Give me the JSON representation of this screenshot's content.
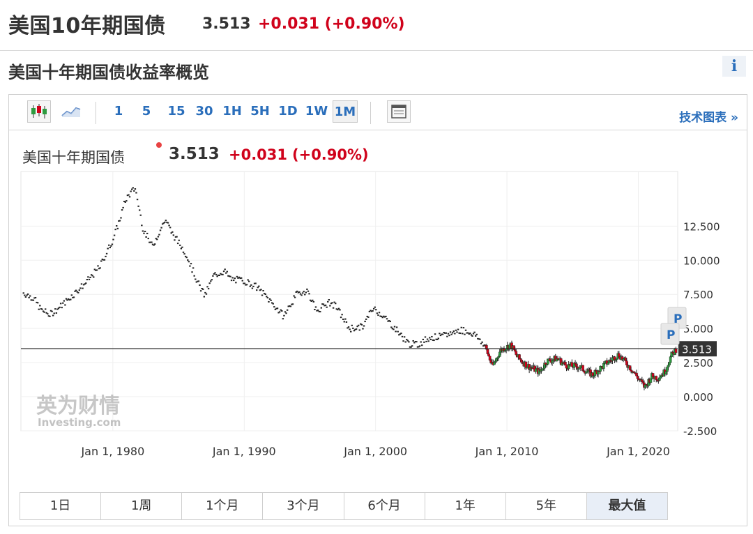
{
  "header": {
    "title": "美国10年期国债",
    "price": "3.513",
    "change": "+0.031 (+0.90%)"
  },
  "overview": {
    "title": "美国十年期国债收益率概览",
    "info_icon": "i"
  },
  "toolbar": {
    "chart_types": [
      "candlestick-icon",
      "line-chart-icon"
    ],
    "timeframes": [
      "1",
      "5",
      "15",
      "30",
      "1H",
      "5H",
      "1D",
      "1W",
      "1M"
    ],
    "active_timeframe": "1M",
    "indicator_icon": "indicator-panel-icon",
    "tech_chart_label": "技术图表 »"
  },
  "chart_header": {
    "name": "美国十年期国债",
    "price": "3.513",
    "change": "+0.031",
    "change_pct": "(+0.90%)"
  },
  "chart_data": {
    "type": "candlestick",
    "title": "美国十年期国债",
    "x_ticks": [
      "Jan 1, 1980",
      "Jan 1, 1990",
      "Jan 1, 2000",
      "Jan 1, 2010",
      "Jan 1, 2020"
    ],
    "y_ticks": [
      "12.500",
      "10.000",
      "7.500",
      "5.000",
      "2.500",
      "0.000",
      "-2.500"
    ],
    "ylim": [
      -2.5,
      16.5
    ],
    "xlim": [
      1973.0,
      2023.0
    ],
    "last_value": "3.513",
    "markers": [
      "P",
      "P"
    ],
    "x": [
      1973.2,
      1974.0,
      1974.5,
      1975.2,
      1976.0,
      1977.0,
      1978.0,
      1979.0,
      1980.0,
      1980.5,
      1981.0,
      1981.7,
      1982.3,
      1983.0,
      1984.0,
      1984.5,
      1985.5,
      1986.5,
      1987.0,
      1987.7,
      1988.5,
      1989.0,
      1990.0,
      1991.0,
      1992.0,
      1993.0,
      1994.0,
      1994.8,
      1995.5,
      1996.5,
      1997.0,
      1998.0,
      1999.0,
      1999.8,
      2000.5,
      2001.5,
      2002.5,
      2003.2,
      2004.0,
      2005.0,
      2006.5,
      2007.5,
      2008.3,
      2008.9,
      2009.5,
      2010.3,
      2010.8,
      2011.5,
      2012.5,
      2013.0,
      2013.8,
      2014.5,
      2015.5,
      2016.5,
      2017.5,
      2018.5,
      2019.5,
      2020.5,
      2021.0,
      2021.5,
      2022.0,
      2022.5,
      2022.9
    ],
    "y": [
      7.6,
      7.2,
      6.4,
      6.0,
      6.6,
      7.5,
      8.4,
      9.5,
      11.5,
      12.9,
      14.5,
      15.3,
      12.3,
      11.0,
      13.0,
      12.0,
      10.6,
      8.3,
      7.4,
      8.9,
      9.2,
      8.6,
      8.5,
      8.0,
      7.0,
      5.9,
      7.5,
      7.8,
      6.3,
      6.9,
      6.6,
      5.0,
      5.1,
      6.5,
      6.0,
      5.0,
      3.9,
      3.8,
      4.3,
      4.4,
      4.9,
      4.6,
      3.8,
      2.2,
      3.4,
      3.8,
      2.9,
      2.3,
      1.8,
      2.6,
      2.8,
      2.3,
      2.2,
      1.6,
      2.4,
      3.1,
      2.0,
      0.7,
      1.5,
      1.4,
      1.8,
      3.0,
      3.513
    ],
    "values_are": "monthly yield, percent"
  },
  "range_buttons": [
    "1日",
    "1周",
    "1个月",
    "3个月",
    "6个月",
    "1年",
    "5年",
    "最大值"
  ],
  "active_range": "最大值",
  "watermark": {
    "cn": "英为财情",
    "en": "Investing.com"
  }
}
